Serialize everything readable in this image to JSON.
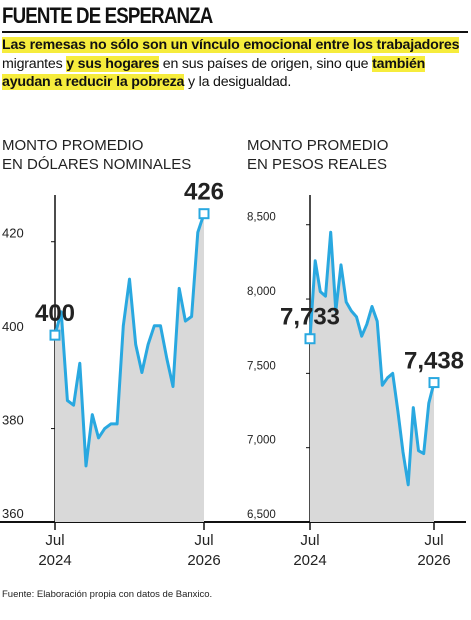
{
  "title": "FUENTE DE ESPERANZA",
  "subtitle": [
    {
      "text": "Las remesas no sólo son un vínculo emocional entre los trabajadores",
      "highlight": true
    },
    {
      "text": " migrantes ",
      "highlight": false
    },
    {
      "text": "y sus hogares",
      "highlight": true
    },
    {
      "text": " en sus países de origen, sino que ",
      "highlight": false
    },
    {
      "text": "también ayudan a reducir la pobreza",
      "highlight": true
    },
    {
      "text": " y la desigualdad.",
      "highlight": false
    }
  ],
  "source": "Fuente: Elaboración propia con datos de Banxico.",
  "chart_data": [
    {
      "type": "line",
      "title": [
        "MONTO PROMEDIO",
        "EN DÓLARES NOMINALES"
      ],
      "color": "#29a8e0",
      "area_color": "#d9d9d9",
      "x": [
        "2024-07",
        "2024-08",
        "2024-09",
        "2024-10",
        "2024-11",
        "2024-12",
        "2025-01",
        "2025-02",
        "2025-03",
        "2025-04",
        "2025-05",
        "2025-06",
        "2025-07",
        "2025-08",
        "2025-09",
        "2025-10",
        "2025-11",
        "2025-12",
        "2026-01",
        "2026-02",
        "2026-03",
        "2026-04",
        "2026-05",
        "2026-06",
        "2026-07"
      ],
      "values": [
        400,
        405,
        386,
        385,
        394,
        372,
        383,
        378,
        380,
        381,
        381,
        402,
        412,
        398,
        392,
        398,
        402,
        402,
        395,
        389,
        410,
        403,
        404,
        422,
        426
      ],
      "value_labels": [
        "400",
        null,
        null,
        null,
        null,
        null,
        null,
        null,
        null,
        null,
        null,
        null,
        null,
        null,
        null,
        null,
        null,
        null,
        null,
        null,
        null,
        null,
        null,
        null,
        "426"
      ],
      "xlim": [
        "2024-07",
        "2026-07"
      ],
      "xticks": [
        {
          "value": "2024-07",
          "label": [
            "Jul",
            "2024"
          ]
        },
        {
          "value": "2026-07",
          "label": [
            "Jul",
            "2026"
          ]
        }
      ],
      "ylim": [
        360,
        430
      ],
      "yticks": [
        360,
        380,
        400,
        420
      ],
      "grid": false
    },
    {
      "type": "line",
      "title": [
        "MONTO PROMEDIO",
        "EN PESOS REALES"
      ],
      "color": "#29a8e0",
      "area_color": "#d9d9d9",
      "x": [
        "2024-07",
        "2024-08",
        "2024-09",
        "2024-10",
        "2024-11",
        "2024-12",
        "2025-01",
        "2025-02",
        "2025-03",
        "2025-04",
        "2025-05",
        "2025-06",
        "2025-07",
        "2025-08",
        "2025-09",
        "2025-10",
        "2025-11",
        "2025-12",
        "2026-01",
        "2026-02",
        "2026-03",
        "2026-04",
        "2026-05",
        "2026-06",
        "2026-07"
      ],
      "values": [
        7733,
        8257,
        8050,
        8020,
        8450,
        7920,
        8230,
        7980,
        7920,
        7880,
        7750,
        7830,
        7950,
        7850,
        7420,
        7470,
        7500,
        7250,
        6970,
        6750,
        7270,
        6980,
        6960,
        7300,
        7438
      ],
      "value_labels": [
        "7,733",
        null,
        null,
        null,
        null,
        null,
        null,
        null,
        null,
        null,
        null,
        null,
        null,
        null,
        null,
        null,
        null,
        null,
        null,
        null,
        null,
        null,
        null,
        null,
        "7,438"
      ],
      "xlim": [
        "2024-07",
        "2026-07"
      ],
      "xticks": [
        {
          "value": "2024-07",
          "label": [
            "Jul",
            "2024"
          ]
        },
        {
          "value": "2026-07",
          "label": [
            "Jul",
            "2026"
          ]
        }
      ],
      "ylim": [
        6500,
        8700
      ],
      "yticks": [
        {
          "value": 6500,
          "label": "6,500"
        },
        {
          "value": 7000,
          "label": "7,000"
        },
        {
          "value": 7500,
          "label": "7,500"
        },
        {
          "value": 8000,
          "label": "8,000"
        },
        {
          "value": 8500,
          "label": "8,500"
        }
      ],
      "grid": false
    }
  ]
}
